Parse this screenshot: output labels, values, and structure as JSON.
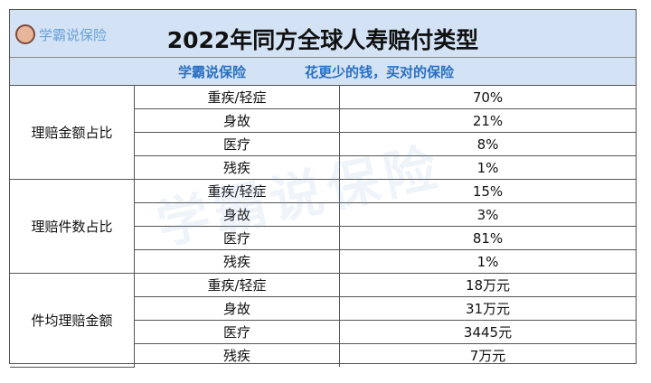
{
  "header": {
    "logo": "学霸说保险",
    "title": "2022年同方全球人寿赔付类型",
    "subtitle_left": "学霸说保险",
    "subtitle_right": "花更少的钱，买对的保险"
  },
  "watermark": "学霸说保险",
  "table": {
    "groups": [
      {
        "label": "理赔金额占比",
        "rows": [
          [
            "重疾/轻症",
            "70%"
          ],
          [
            "身故",
            "21%"
          ],
          [
            "医疗",
            "8%"
          ],
          [
            "残疾",
            "1%"
          ]
        ]
      },
      {
        "label": "理赔件数占比",
        "rows": [
          [
            "重疾/轻症",
            "15%"
          ],
          [
            "身故",
            "3%"
          ],
          [
            "医疗",
            "81%"
          ],
          [
            "残疾",
            "1%"
          ]
        ]
      },
      {
        "label": "件均理赔金额",
        "rows": [
          [
            "重疾/轻症",
            "18万元"
          ],
          [
            "身故",
            "31万元"
          ],
          [
            "医疗",
            "3445元"
          ],
          [
            "残疾",
            "7万元"
          ]
        ]
      }
    ]
  }
}
